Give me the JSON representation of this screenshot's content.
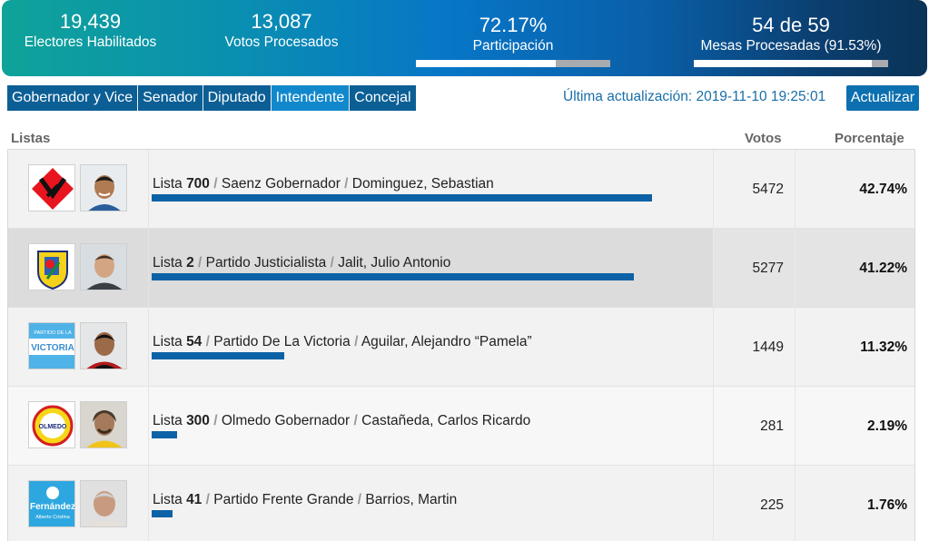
{
  "stats": {
    "electores_value": "19,439",
    "electores_label": "Electores Habilitados",
    "votos_value": "13,087",
    "votos_label": "Votos Procesados",
    "participacion_value": "72.17%",
    "participacion_label": "Participación",
    "participacion_fraction": 0.7217,
    "mesas_value": "54 de 59",
    "mesas_label": "Mesas Procesadas (91.53%)",
    "mesas_fraction": 0.9153
  },
  "tabs": [
    {
      "label": "Gobernador y Vice",
      "active": false
    },
    {
      "label": "Senador",
      "active": false
    },
    {
      "label": "Diputado",
      "active": false
    },
    {
      "label": "Intendente",
      "active": true
    },
    {
      "label": "Concejal",
      "active": false
    }
  ],
  "last_update": "Última actualización: 2019-11-10 19:25:01",
  "refresh_label": "Actualizar",
  "table": {
    "col_listas": "Listas",
    "col_votos": "Votos",
    "col_porcentaje": "Porcentaje",
    "rows": [
      {
        "lista_word": "Lista",
        "lista_num": "700",
        "party": "Saenz Gobernador",
        "candidate": "Dominguez, Sebastian",
        "votes": "5472",
        "percent": "42.74%",
        "fraction": 0.4274,
        "logo_icon": "red-diamond-logo-icon",
        "photo_icon": "candidate-photo-icon"
      },
      {
        "lista_word": "Lista",
        "lista_num": "2",
        "party": "Partido Justicialista",
        "candidate": "Jalit, Julio Antonio",
        "votes": "5277",
        "percent": "41.22%",
        "fraction": 0.4122,
        "logo_icon": "pj-shield-logo-icon",
        "photo_icon": "candidate-photo-icon"
      },
      {
        "lista_word": "Lista",
        "lista_num": "54",
        "party": "Partido De La Victoria",
        "candidate": "Aguilar, Alejandro “Pamela”",
        "votes": "1449",
        "percent": "11.32%",
        "fraction": 0.1132,
        "logo_icon": "victoria-flag-logo-icon",
        "photo_icon": "candidate-photo-icon",
        "logo_text_top": "PARTIDO DE LA",
        "logo_text_main": "VICTORIA"
      },
      {
        "lista_word": "Lista",
        "lista_num": "300",
        "party": "Olmedo Gobernador",
        "candidate": "Castañeda, Carlos Ricardo",
        "votes": "281",
        "percent": "2.19%",
        "fraction": 0.0219,
        "logo_icon": "olmedo-circle-logo-icon",
        "photo_icon": "candidate-photo-icon",
        "logo_text_main": "OLMEDO"
      },
      {
        "lista_word": "Lista",
        "lista_num": "41",
        "party": "Partido Frente Grande",
        "candidate": "Barrios, Martin",
        "votes": "225",
        "percent": "1.76%",
        "fraction": 0.0176,
        "logo_icon": "fernandez-sun-logo-icon",
        "photo_icon": "candidate-photo-icon",
        "logo_text_main": "Fernández",
        "logo_text_sub": "Alberto Cristina"
      }
    ]
  },
  "colors": {
    "banner_start": "#0fa399",
    "banner_end": "#0a3357",
    "tab_bg": "#0c5f95",
    "tab_active_bg": "#1288cc",
    "vote_bar": "#0c62a6",
    "update_text": "#1a6ea8"
  }
}
